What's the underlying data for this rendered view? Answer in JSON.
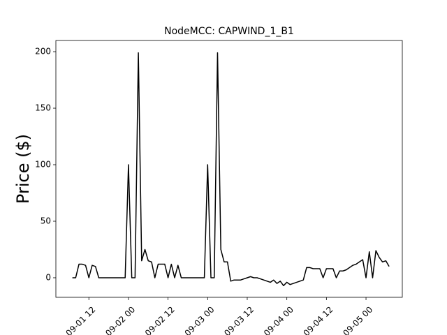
{
  "chart_data": {
    "type": "line",
    "title": "NodeMCC: CAPWIND_1_B1",
    "y_label": "Price ($)",
    "x": [
      "09-01 07",
      "09-01 08",
      "09-01 09",
      "09-01 10",
      "09-01 11",
      "09-01 12",
      "09-01 13",
      "09-01 14",
      "09-01 15",
      "09-01 16",
      "09-01 17",
      "09-01 18",
      "09-01 19",
      "09-01 20",
      "09-01 21",
      "09-01 22",
      "09-01 23",
      "09-02 00",
      "09-02 01",
      "09-02 02",
      "09-02 03",
      "09-02 04",
      "09-02 05",
      "09-02 06",
      "09-02 07",
      "09-02 08",
      "09-02 09",
      "09-02 10",
      "09-02 11",
      "09-02 12",
      "09-02 13",
      "09-02 14",
      "09-02 15",
      "09-02 16",
      "09-02 17",
      "09-02 18",
      "09-02 19",
      "09-02 20",
      "09-02 21",
      "09-02 22",
      "09-02 23",
      "09-03 00",
      "09-03 01",
      "09-03 02",
      "09-03 03",
      "09-03 04",
      "09-03 05",
      "09-03 06",
      "09-03 07",
      "09-03 08",
      "09-03 09",
      "09-03 10",
      "09-03 11",
      "09-03 12",
      "09-03 13",
      "09-03 14",
      "09-03 15",
      "09-03 16",
      "09-03 17",
      "09-03 18",
      "09-03 19",
      "09-03 20",
      "09-03 21",
      "09-03 22",
      "09-03 23",
      "09-04 00",
      "09-04 01",
      "09-04 02",
      "09-04 03",
      "09-04 04",
      "09-04 05",
      "09-04 06",
      "09-04 07",
      "09-04 08",
      "09-04 09",
      "09-04 10",
      "09-04 11",
      "09-04 12",
      "09-04 13",
      "09-04 14",
      "09-04 15",
      "09-04 16",
      "09-04 17",
      "09-04 18",
      "09-04 19",
      "09-04 20",
      "09-04 21",
      "09-04 22",
      "09-04 23",
      "09-05 00",
      "09-05 01",
      "09-05 02",
      "09-05 03",
      "09-05 04",
      "09-05 05",
      "09-05 06",
      "09-05 07"
    ],
    "series": [
      {
        "color": "#000000",
        "values": [
          0,
          0,
          12,
          12,
          11,
          0,
          11,
          10,
          0,
          0,
          0,
          0,
          0,
          0,
          0,
          0,
          0,
          100,
          0,
          0,
          199,
          15,
          25,
          15,
          14,
          0,
          12,
          12,
          12,
          0,
          12,
          0,
          11,
          0,
          0,
          0,
          0,
          0,
          0,
          0,
          0,
          100,
          0,
          0,
          199,
          25,
          14,
          14,
          -3,
          -2,
          -2,
          -2,
          -1,
          0,
          1,
          0,
          0,
          -1,
          -2,
          -3,
          -4,
          -2,
          -5,
          -3,
          -7,
          -4,
          -6,
          -5,
          -4,
          -3,
          -2,
          9,
          9,
          8,
          8,
          8,
          0,
          8,
          8,
          8,
          0,
          6,
          6,
          7,
          9,
          11,
          12,
          14,
          16,
          0,
          23,
          0,
          24,
          18,
          14,
          15,
          10
        ]
      }
    ],
    "xlim": [
      "09-01 02",
      "09-05 11"
    ],
    "xticks": [
      "09-01 12",
      "09-02 00",
      "09-02 12",
      "09-03 00",
      "09-03 12",
      "09-04 00",
      "09-04 12",
      "09-05 00"
    ],
    "ylim": [
      -17.3,
      209.9
    ],
    "yticks": [
      0,
      50,
      100,
      150,
      200
    ]
  }
}
